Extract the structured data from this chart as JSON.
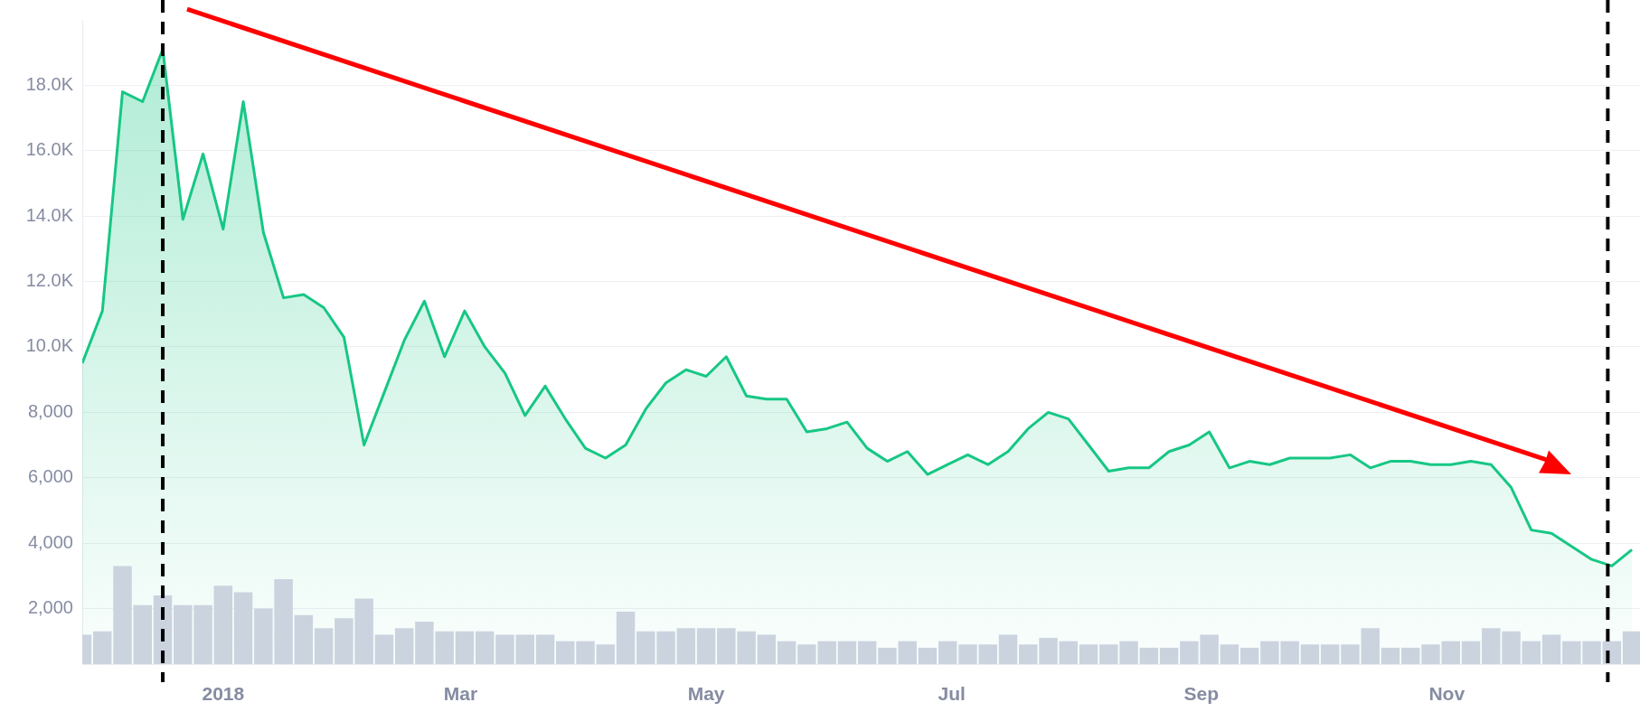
{
  "chart_data": {
    "type": "area",
    "x": [
      "2017-11-27",
      "2017-12-02",
      "2017-12-07",
      "2017-12-12",
      "2017-12-17",
      "2017-12-22",
      "2017-12-27",
      "2018-01-01",
      "2018-01-06",
      "2018-01-11",
      "2018-01-16",
      "2018-01-21",
      "2018-01-26",
      "2018-01-31",
      "2018-02-05",
      "2018-02-10",
      "2018-02-15",
      "2018-02-20",
      "2018-02-25",
      "2018-03-02",
      "2018-03-07",
      "2018-03-12",
      "2018-03-17",
      "2018-03-22",
      "2018-03-27",
      "2018-04-01",
      "2018-04-06",
      "2018-04-11",
      "2018-04-16",
      "2018-04-21",
      "2018-04-26",
      "2018-05-01",
      "2018-05-06",
      "2018-05-11",
      "2018-05-16",
      "2018-05-21",
      "2018-05-26",
      "2018-05-31",
      "2018-06-05",
      "2018-06-10",
      "2018-06-15",
      "2018-06-20",
      "2018-06-25",
      "2018-06-30",
      "2018-07-05",
      "2018-07-10",
      "2018-07-15",
      "2018-07-20",
      "2018-07-25",
      "2018-07-30",
      "2018-08-04",
      "2018-08-09",
      "2018-08-14",
      "2018-08-19",
      "2018-08-24",
      "2018-08-29",
      "2018-09-03",
      "2018-09-08",
      "2018-09-13",
      "2018-09-18",
      "2018-09-23",
      "2018-09-28",
      "2018-10-03",
      "2018-10-08",
      "2018-10-13",
      "2018-10-18",
      "2018-10-23",
      "2018-10-28",
      "2018-11-02",
      "2018-11-07",
      "2018-11-12",
      "2018-11-17",
      "2018-11-22",
      "2018-11-27",
      "2018-12-02",
      "2018-12-07",
      "2018-12-12",
      "2018-12-17"
    ],
    "series": [
      {
        "type": "bar",
        "color": "#cbd3df",
        "values": [
          1200,
          1300,
          3300,
          2100,
          2400,
          2100,
          2100,
          2700,
          2500,
          2000,
          2900,
          1800,
          1400,
          1700,
          2300,
          1200,
          1400,
          1600,
          1300,
          1300,
          1300,
          1200,
          1200,
          1200,
          1000,
          1000,
          900,
          1900,
          1300,
          1300,
          1400,
          1400,
          1400,
          1300,
          1200,
          1000,
          900,
          1000,
          1000,
          1000,
          800,
          1000,
          800,
          1000,
          900,
          900,
          1200,
          900,
          1100,
          1000,
          900,
          900,
          1000,
          800,
          800,
          1000,
          1200,
          900,
          800,
          1000,
          1000,
          900,
          900,
          900,
          1400,
          800,
          800,
          900,
          1000,
          1000,
          1400,
          1300,
          1000,
          1200,
          1000,
          1000,
          1000,
          1300
        ]
      },
      {
        "color": "#16c784",
        "values": [
          9500,
          11100,
          17800,
          17500,
          19100,
          13900,
          15900,
          13600,
          17500,
          13500,
          11500,
          11600,
          11200,
          10300,
          7000,
          8600,
          10200,
          11400,
          9700,
          11100,
          10000,
          9200,
          7900,
          8800,
          7800,
          6900,
          6600,
          7000,
          8100,
          8900,
          9300,
          9100,
          9700,
          8500,
          8400,
          8400,
          7400,
          7500,
          7700,
          6900,
          6500,
          6800,
          6100,
          6400,
          6700,
          6400,
          6800,
          7500,
          8000,
          7800,
          7000,
          6200,
          6300,
          6300,
          6800,
          7000,
          7400,
          6300,
          6500,
          6400,
          6600,
          6600,
          6600,
          6700,
          6300,
          6500,
          6500,
          6400,
          6400,
          6500,
          6400,
          5700,
          4400,
          4300,
          3900,
          3500,
          3300,
          3800
        ]
      }
    ],
    "xlim": [
      "2017-11-27",
      "2018-12-19"
    ],
    "xticks": [
      {
        "value": "2018-01-01",
        "label": "2018"
      },
      {
        "value": "2018-03-01",
        "label": "Mar"
      },
      {
        "value": "2018-05-01",
        "label": "May"
      },
      {
        "value": "2018-07-01",
        "label": "Jul"
      },
      {
        "value": "2018-09-01",
        "label": "Sep"
      },
      {
        "value": "2018-11-01",
        "label": "Nov"
      }
    ],
    "ylim": [
      300,
      20000
    ],
    "yticks": [
      {
        "value": 2000,
        "label": "2,000"
      },
      {
        "value": 4000,
        "label": "4,000"
      },
      {
        "value": 6000,
        "label": "6,000"
      },
      {
        "value": 8000,
        "label": "8,000"
      },
      {
        "value": 10000,
        "label": "10.0K"
      },
      {
        "value": 12000,
        "label": "12.0K"
      },
      {
        "value": 14000,
        "label": "14.0K"
      },
      {
        "value": 16000,
        "label": "16.0K"
      },
      {
        "value": 18000,
        "label": "18.0K"
      }
    ],
    "ref_lines": [
      {
        "axis": "x",
        "value": "2017-12-17",
        "color": "#000000",
        "line_style": "dashed"
      },
      {
        "axis": "x",
        "value": "2018-12-11",
        "color": "#000000",
        "line_style": "dashed"
      }
    ],
    "grid": "y",
    "legend": false
  }
}
